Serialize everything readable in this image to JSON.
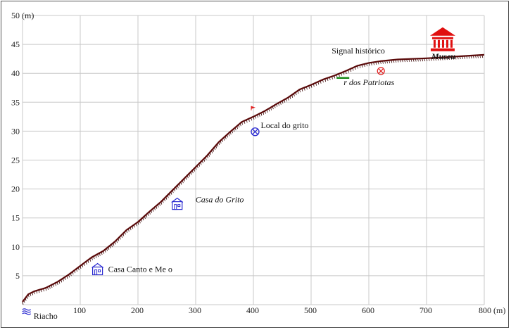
{
  "chart_data": {
    "type": "line",
    "title": "",
    "xlabel": "(m)",
    "ylabel": "(m)",
    "xlim": [
      0,
      800
    ],
    "ylim": [
      0,
      50
    ],
    "x_ticks": [
      100,
      200,
      300,
      400,
      500,
      600,
      700,
      800
    ],
    "y_ticks": [
      5,
      10,
      15,
      20,
      25,
      30,
      35,
      40,
      45,
      50
    ],
    "x_tick_labels": [
      "100",
      "200",
      "300",
      "400",
      "500",
      "600",
      "700",
      "800 (m)"
    ],
    "y_tick_labels": [
      "5",
      "10",
      "15",
      "20",
      "25",
      "30",
      "35",
      "40",
      "45",
      "50 (m)"
    ],
    "grid": true,
    "series": [
      {
        "color": "#5a0a0a",
        "x": [
          0,
          10,
          20,
          40,
          60,
          80,
          100,
          120,
          140,
          160,
          180,
          200,
          220,
          240,
          260,
          280,
          300,
          320,
          340,
          360,
          380,
          400,
          420,
          440,
          460,
          480,
          500,
          520,
          540,
          560,
          580,
          600,
          620,
          650,
          700,
          750,
          800
        ],
        "y": [
          0.5,
          1.8,
          2.3,
          2.9,
          3.9,
          5.2,
          6.7,
          8.2,
          9.3,
          10.9,
          12.9,
          14.3,
          16.1,
          17.8,
          19.8,
          21.8,
          23.8,
          25.8,
          28.1,
          29.9,
          31.6,
          32.5,
          33.5,
          34.7,
          35.8,
          37.2,
          38.0,
          38.9,
          39.6,
          40.4,
          41.3,
          41.8,
          42.1,
          42.4,
          42.6,
          42.9,
          43.2
        ]
      }
    ],
    "annotations": [
      {
        "label": "Riacho",
        "x": 7,
        "y": -1.2,
        "icon": "water-icon",
        "color": "#2a2ad0"
      },
      {
        "label": "Casa Canto e Me o",
        "x": 130,
        "y": 5.9,
        "icon": "house-icon",
        "color": "#2a2ad0"
      },
      {
        "label": "Casa do Grito",
        "x": 268,
        "y": 17.2,
        "icon": "house-icon",
        "color": "#2a2ad0",
        "italic": true
      },
      {
        "label": "Local do grito",
        "x": 403,
        "y": 29.9,
        "icon": "crossed-circle-icon",
        "color": "#2a2ad0"
      },
      {
        "label": "",
        "x": 400,
        "y": 33.6,
        "icon": "flag-icon",
        "color": "#e02020"
      },
      {
        "label": "r dos Patriotas",
        "x": 560,
        "y": 39.2,
        "icon": "green-line-icon",
        "color": "#1a8a1a",
        "italic": true
      },
      {
        "label": "Signal histórico",
        "x": 621,
        "y": 40.4,
        "icon": "target-icon",
        "color": "#e02020"
      },
      {
        "label": "Museu",
        "x": 728,
        "y": 46.5,
        "icon": "museum-icon",
        "color": "#e01010",
        "italic": true,
        "bold": true
      }
    ]
  }
}
